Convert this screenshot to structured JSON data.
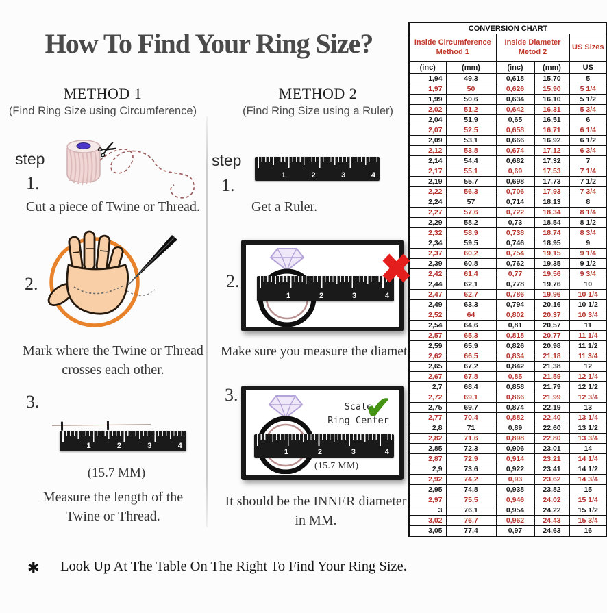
{
  "title": "How To Find Your Ring Size?",
  "footer": {
    "asterisk": "✱",
    "note": "Look Up At The Table On The Right To Find Your Ring Size."
  },
  "icons": {
    "scissors": "✂",
    "x_mark": "✖",
    "check_mark": "✔"
  },
  "ruler_numbers": [
    "1",
    "2",
    "3",
    "4"
  ],
  "method1": {
    "heading": "METHOD 1",
    "subheading": "(Find Ring Size using Circumference)",
    "step_label": "step",
    "steps": [
      {
        "num": "1.",
        "text": "Cut a piece of Twine or Thread."
      },
      {
        "num": "2.",
        "text": "Mark where the Twine or Thread crosses each other."
      },
      {
        "num": "3.",
        "text": "Measure the length of the Twine or Thread.",
        "measurement": "(15.7 MM)"
      }
    ]
  },
  "method2": {
    "heading": "METHOD 2",
    "subheading": "(Find Ring Size using a Ruler)",
    "step_label": "step",
    "steps": [
      {
        "num": "1.",
        "text": "Get a Ruler."
      },
      {
        "num": "2.",
        "text": "Make sure you measure the diameter."
      },
      {
        "num": "3.",
        "text": "It should be the INNER diameter in MM.",
        "scale_line1": "Scale",
        "scale_line2": "Ring Center",
        "measurement": "(15.7 MM)"
      }
    ]
  },
  "conversion_table": {
    "title": "CONVERSION CHART",
    "groups": [
      {
        "line1": "Inside Circumference",
        "line2": "Method 1"
      },
      {
        "line1": "Inside Diameter",
        "line2": "Metod 2"
      },
      {
        "line1": "US Sizes"
      }
    ],
    "sub_headers": [
      "(inc)",
      "(mm)",
      "(inc)",
      "(mm)",
      "US"
    ],
    "rows": [
      [
        "1,94",
        "49,3",
        "0,618",
        "15,70",
        "5"
      ],
      [
        "1,97",
        "50",
        "0,626",
        "15,90",
        "5 1/4"
      ],
      [
        "1,99",
        "50,6",
        "0,634",
        "16,10",
        "5 1/2"
      ],
      [
        "2,02",
        "51,2",
        "0,642",
        "16,31",
        "5 3/4"
      ],
      [
        "2,04",
        "51,9",
        "0,65",
        "16,51",
        "6"
      ],
      [
        "2,07",
        "52,5",
        "0,658",
        "16,71",
        "6 1/4"
      ],
      [
        "2,09",
        "53,1",
        "0,666",
        "16,92",
        "6 1/2"
      ],
      [
        "2,12",
        "53,8",
        "0,674",
        "17,12",
        "6 3/4"
      ],
      [
        "2,14",
        "54,4",
        "0,682",
        "17,32",
        "7"
      ],
      [
        "2,17",
        "55,1",
        "0,69",
        "17,53",
        "7 1/4"
      ],
      [
        "2,19",
        "55,7",
        "0,698",
        "17,73",
        "7 1/2"
      ],
      [
        "2,22",
        "56,3",
        "0,706",
        "17,93",
        "7 3/4"
      ],
      [
        "2,24",
        "57",
        "0,714",
        "18,13",
        "8"
      ],
      [
        "2,27",
        "57,6",
        "0,722",
        "18,34",
        "8 1/4"
      ],
      [
        "2,29",
        "58,2",
        "0,73",
        "18,54",
        "8 1/2"
      ],
      [
        "2,32",
        "58,9",
        "0,738",
        "18,74",
        "8 3/4"
      ],
      [
        "2,34",
        "59,5",
        "0,746",
        "18,95",
        "9"
      ],
      [
        "2,37",
        "60,2",
        "0,754",
        "19,15",
        "9 1/4"
      ],
      [
        "2,39",
        "60,8",
        "0,762",
        "19,35",
        "9 1/2"
      ],
      [
        "2,42",
        "61,4",
        "0,77",
        "19,56",
        "9 3/4"
      ],
      [
        "2,44",
        "62,1",
        "0,778",
        "19,76",
        "10"
      ],
      [
        "2,47",
        "62,7",
        "0,786",
        "19,96",
        "10 1/4"
      ],
      [
        "2,49",
        "63,3",
        "0,794",
        "20,16",
        "10 1/2"
      ],
      [
        "2,52",
        "64",
        "0,802",
        "20,37",
        "10 3/4"
      ],
      [
        "2,54",
        "64,6",
        "0,81",
        "20,57",
        "11"
      ],
      [
        "2,57",
        "65,3",
        "0,818",
        "20,77",
        "11 1/4"
      ],
      [
        "2,59",
        "65,9",
        "0,826",
        "20,98",
        "11 1/2"
      ],
      [
        "2,62",
        "66,5",
        "0,834",
        "21,18",
        "11 3/4"
      ],
      [
        "2,65",
        "67,2",
        "0,842",
        "21,38",
        "12"
      ],
      [
        "2,67",
        "67,8",
        "0,85",
        "21,59",
        "12 1/4"
      ],
      [
        "2,7",
        "68,4",
        "0,858",
        "21,79",
        "12 1/2"
      ],
      [
        "2,72",
        "69,1",
        "0,866",
        "21,99",
        "12 3/4"
      ],
      [
        "2,75",
        "69,7",
        "0,874",
        "22,19",
        "13"
      ],
      [
        "2,77",
        "70,4",
        "0,882",
        "22,40",
        "13 1/4"
      ],
      [
        "2,8",
        "71",
        "0,89",
        "22,60",
        "13 1/2"
      ],
      [
        "2,82",
        "71,6",
        "0,898",
        "22,80",
        "13 3/4"
      ],
      [
        "2,85",
        "72,3",
        "0,906",
        "23,01",
        "14"
      ],
      [
        "2,87",
        "72,9",
        "0,914",
        "23,21",
        "14 1/4"
      ],
      [
        "2,9",
        "73,6",
        "0,922",
        "23,41",
        "14 1/2"
      ],
      [
        "2,92",
        "74,2",
        "0,93",
        "23,62",
        "14 3/4"
      ],
      [
        "2,95",
        "74,8",
        "0,938",
        "23,82",
        "15"
      ],
      [
        "2,97",
        "75,5",
        "0,946",
        "24,02",
        "15 1/4"
      ],
      [
        "3",
        "76,1",
        "0,954",
        "24,22",
        "15 1/2"
      ],
      [
        "3,02",
        "76,7",
        "0,962",
        "24,43",
        "15 3/4"
      ],
      [
        "3,05",
        "77,4",
        "0,97",
        "24,63",
        "16"
      ]
    ]
  },
  "colors": {
    "table_red_text": "#b5322c",
    "table_header_red": "#c0392b",
    "x_red": "#e41d1d",
    "check_green": "#449312",
    "hand_circle_orange": "#e8832c",
    "hand_skin": "#f9cfa7",
    "twine_pink": "#f1d6d6",
    "spool_center_blue": "#4b36c9",
    "diamond_purple": "#b4a3d8",
    "ring_inner_rose": "#b98f8f"
  }
}
